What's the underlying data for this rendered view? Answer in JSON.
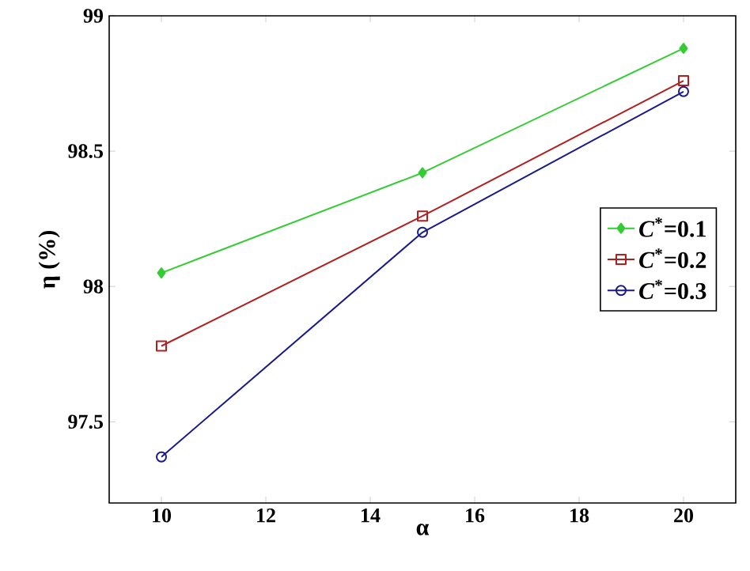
{
  "chart_data": {
    "type": "line",
    "xlabel": "α",
    "ylabel": "η (%)",
    "x": [
      10,
      15,
      20
    ],
    "series": [
      {
        "name": "*C*$^{*}$=0.1",
        "color": "#33cc33",
        "marker": "diamond",
        "values": [
          98.05,
          98.42,
          98.88
        ]
      },
      {
        "name": "*C*$^{*}$=0.2",
        "color": "#b02020",
        "marker": "square",
        "values": [
          97.78,
          98.26,
          98.76
        ]
      },
      {
        "name": "*C*$^{*}$=0.3",
        "color": "#1a1a8c",
        "marker": "circle",
        "values": [
          97.37,
          98.2,
          98.72
        ]
      }
    ],
    "xlim": [
      9,
      21
    ],
    "ylim": [
      97.2,
      99
    ],
    "xticks": [
      10,
      12,
      14,
      16,
      18,
      20
    ],
    "yticks": [
      97.5,
      98,
      98.5,
      99
    ],
    "legend": "right",
    "grid": false
  }
}
